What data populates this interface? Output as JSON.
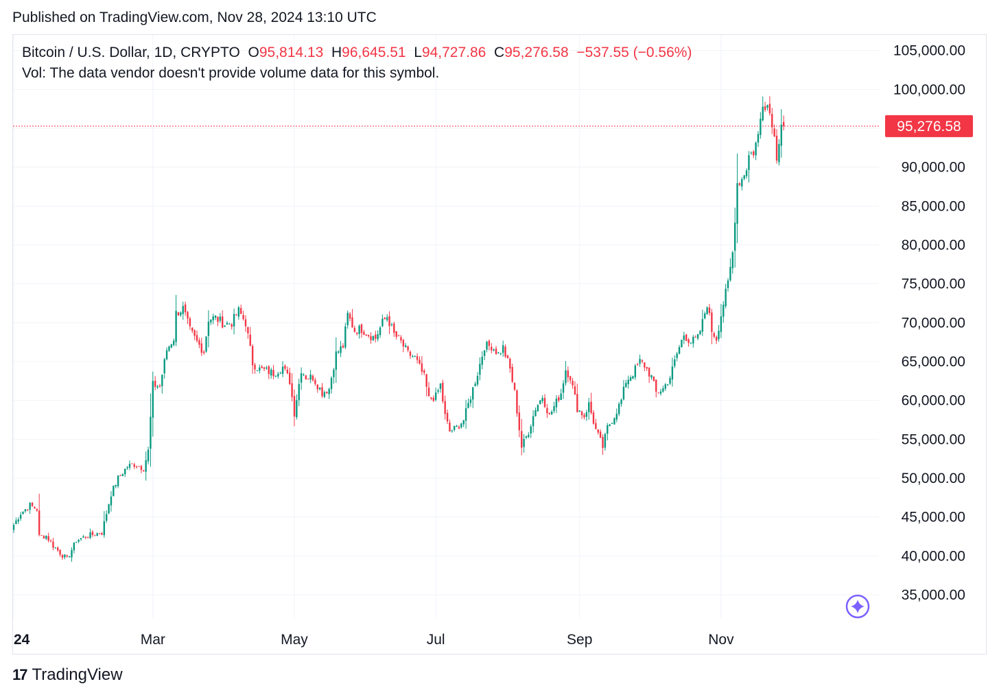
{
  "header": {
    "published": "Published on TradingView.com, Nov 28, 2024 13:10 UTC"
  },
  "legend": {
    "symbol": "Bitcoin / U.S. Dollar, 1D, CRYPTO",
    "open_label": "O",
    "open": "95,814.13",
    "high_label": "H",
    "high": "96,645.51",
    "low_label": "L",
    "low": "94,727.86",
    "close_label": "C",
    "close": "95,276.58",
    "change": "−537.55 (−0.56%)",
    "volume_note": "Vol: The data vendor doesn't provide volume data for this symbol."
  },
  "footer": {
    "brand": "TradingView",
    "logo_mark": "17"
  },
  "colors": {
    "up": "#089981",
    "down": "#f23645",
    "grid": "#f0f3fa",
    "axis_text": "#131722",
    "price_line": "#f23645",
    "assistant": "#7b61ff"
  },
  "chart_data": {
    "type": "candlestick",
    "title": "Bitcoin / U.S. Dollar, 1D, CRYPTO",
    "ylim": [
      32000,
      107000
    ],
    "y_ticks": [
      35000,
      40000,
      45000,
      50000,
      55000,
      60000,
      65000,
      70000,
      75000,
      80000,
      85000,
      90000,
      95000,
      100000,
      105000
    ],
    "y_tick_labels": [
      "35,000.00",
      "40,000.00",
      "45,000.00",
      "50,000.00",
      "55,000.00",
      "60,000.00",
      "65,000.00",
      "70,000.00",
      "75,000.00",
      "80,000.00",
      "85,000.00",
      "90,000.00",
      "95,000.00",
      "100,000.00",
      "105,000.00"
    ],
    "x_ticks": [
      {
        "label": "24",
        "date": "2024-01-01",
        "bold": true
      },
      {
        "label": "Mar",
        "date": "2024-03-01",
        "bold": false
      },
      {
        "label": "May",
        "date": "2024-05-01",
        "bold": false
      },
      {
        "label": "Jul",
        "date": "2024-07-01",
        "bold": false
      },
      {
        "label": "Sep",
        "date": "2024-09-01",
        "bold": false
      },
      {
        "label": "Nov",
        "date": "2024-11-01",
        "bold": false
      }
    ],
    "start_date": "2024-01-01",
    "last_price": 95276.58,
    "last_price_label": "95,276.58",
    "series_close": [
      [
        0,
        44000
      ],
      [
        3,
        45500
      ],
      [
        7,
        46500
      ],
      [
        10,
        46000
      ],
      [
        11,
        42500
      ],
      [
        14,
        42600
      ],
      [
        17,
        41300
      ],
      [
        21,
        40100
      ],
      [
        23,
        39600
      ],
      [
        27,
        42000
      ],
      [
        31,
        42500
      ],
      [
        35,
        42800
      ],
      [
        38,
        43000
      ],
      [
        42,
        48000
      ],
      [
        45,
        50000
      ],
      [
        49,
        51500
      ],
      [
        52,
        51800
      ],
      [
        56,
        51300
      ],
      [
        58,
        53500
      ],
      [
        60,
        62000
      ],
      [
        63,
        61800
      ],
      [
        66,
        66500
      ],
      [
        69,
        68000
      ],
      [
        70,
        71200
      ],
      [
        73,
        71800
      ],
      [
        76,
        69000
      ],
      [
        79,
        67500
      ],
      [
        82,
        66300
      ],
      [
        84,
        70500
      ],
      [
        87,
        70600
      ],
      [
        91,
        69800
      ],
      [
        94,
        70000
      ],
      [
        97,
        71500
      ],
      [
        100,
        70000
      ],
      [
        103,
        64800
      ],
      [
        106,
        64000
      ],
      [
        109,
        63800
      ],
      [
        112,
        63500
      ],
      [
        116,
        64300
      ],
      [
        119,
        62500
      ],
      [
        121,
        58400
      ],
      [
        124,
        64000
      ],
      [
        126,
        63000
      ],
      [
        129,
        63000
      ],
      [
        133,
        61000
      ],
      [
        136,
        61500
      ],
      [
        139,
        66000
      ],
      [
        142,
        67000
      ],
      [
        144,
        71000
      ],
      [
        147,
        69000
      ],
      [
        150,
        69200
      ],
      [
        153,
        68500
      ],
      [
        156,
        68000
      ],
      [
        159,
        70000
      ],
      [
        161,
        70800
      ],
      [
        164,
        68500
      ],
      [
        167,
        67500
      ],
      [
        170,
        66000
      ],
      [
        173,
        65500
      ],
      [
        177,
        63000
      ],
      [
        179,
        60200
      ],
      [
        182,
        60500
      ],
      [
        184,
        62000
      ],
      [
        186,
        58000
      ],
      [
        188,
        56000
      ],
      [
        191,
        56500
      ],
      [
        194,
        57500
      ],
      [
        197,
        60500
      ],
      [
        200,
        63500
      ],
      [
        203,
        67000
      ],
      [
        206,
        67000
      ],
      [
        209,
        66000
      ],
      [
        211,
        66800
      ],
      [
        214,
        64000
      ],
      [
        216,
        61000
      ],
      [
        219,
        54000
      ],
      [
        222,
        56000
      ],
      [
        225,
        59000
      ],
      [
        228,
        60500
      ],
      [
        231,
        58000
      ],
      [
        233,
        59200
      ],
      [
        236,
        61000
      ],
      [
        238,
        64000
      ],
      [
        240,
        63000
      ],
      [
        243,
        59000
      ],
      [
        246,
        58000
      ],
      [
        248,
        59500
      ],
      [
        251,
        56200
      ],
      [
        254,
        54000
      ],
      [
        256,
        56500
      ],
      [
        259,
        58000
      ],
      [
        262,
        60000
      ],
      [
        264,
        62500
      ],
      [
        267,
        63500
      ],
      [
        270,
        65000
      ],
      [
        272,
        64500
      ],
      [
        275,
        63000
      ],
      [
        277,
        61000
      ],
      [
        280,
        61500
      ],
      [
        283,
        63000
      ],
      [
        286,
        66000
      ],
      [
        289,
        68500
      ],
      [
        292,
        67500
      ],
      [
        295,
        68000
      ],
      [
        297,
        70000
      ],
      [
        299,
        72500
      ],
      [
        301,
        69000
      ],
      [
        303,
        68000
      ],
      [
        306,
        72500
      ],
      [
        308,
        75000
      ],
      [
        310,
        79000
      ],
      [
        312,
        88000
      ],
      [
        314,
        88500
      ],
      [
        316,
        90000
      ],
      [
        317,
        91500
      ],
      [
        319,
        92000
      ],
      [
        321,
        94000
      ],
      [
        323,
        98500
      ],
      [
        325,
        98000
      ],
      [
        327,
        96000
      ],
      [
        329,
        91500
      ],
      [
        331,
        95800
      ],
      [
        332,
        95276.58
      ]
    ],
    "open": 95814.13,
    "high": 96645.51,
    "low": 94727.86,
    "close": 95276.58
  }
}
